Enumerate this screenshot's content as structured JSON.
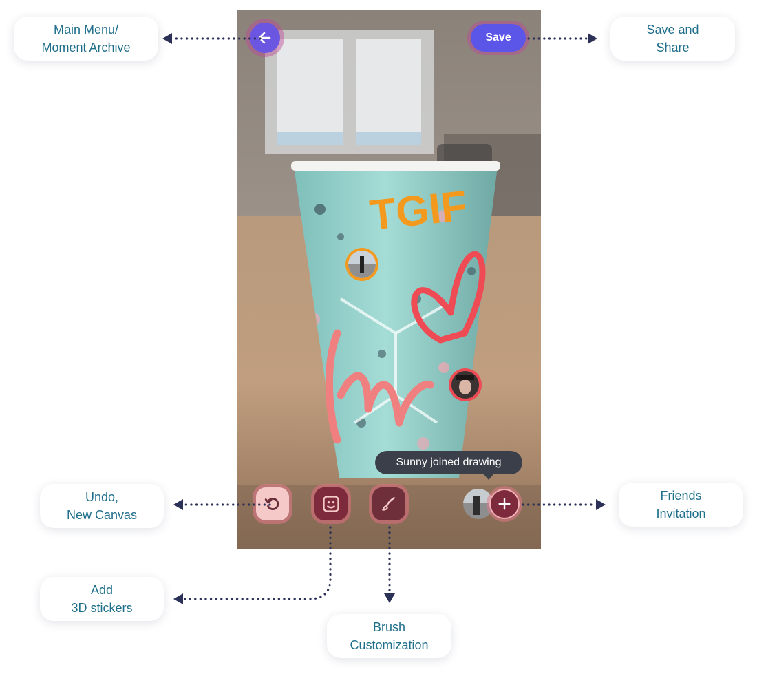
{
  "labels": {
    "main_menu": "Main Menu/\nMoment Archive",
    "save_share": "Save and\nShare",
    "undo": "Undo,\nNew Canvas",
    "friends": "Friends\nInvitation",
    "stickers": "Add\n3D stickers",
    "brush": "Brush\nCustomization"
  },
  "screen": {
    "save_button": "Save",
    "drawing_text": "TGIF",
    "toast": "Sunny  joined drawing"
  },
  "icons": {
    "back": "arrow-left-icon",
    "undo": "undo-icon",
    "stickers": "sticker-face-icon",
    "brush": "brush-icon",
    "add_friend": "plus-icon"
  },
  "colors": {
    "label_text": "#1f6f8b",
    "connector": "#2c3157",
    "save_button": "#5b56e8",
    "back_button": "#6a56e0",
    "drawing_orange": "#f39a1e",
    "drawing_red": "#ee4b55",
    "drawing_pink": "#f08080",
    "toast_bg": "#3b3f4a"
  }
}
